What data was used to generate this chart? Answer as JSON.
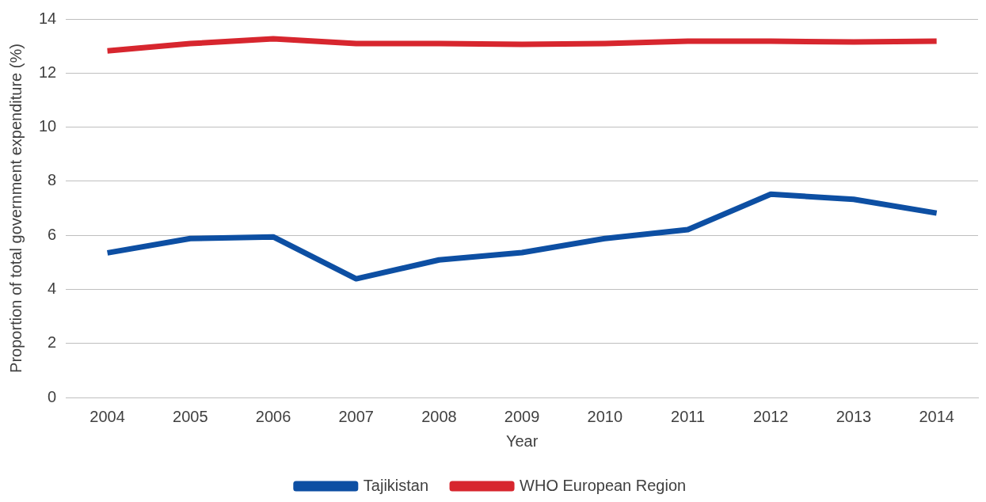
{
  "chart_data": {
    "type": "line",
    "xlabel": "Year",
    "ylabel": "Proportion of total government expenditure (%)",
    "categories": [
      "2004",
      "2005",
      "2006",
      "2007",
      "2008",
      "2009",
      "2010",
      "2011",
      "2012",
      "2013",
      "2014"
    ],
    "series": [
      {
        "name": "Tajikistan",
        "color": "#0d4fa3",
        "values": [
          5.35,
          5.88,
          5.94,
          4.39,
          5.09,
          5.36,
          5.88,
          6.21,
          7.52,
          7.33,
          6.82
        ]
      },
      {
        "name": "WHO European Region",
        "color": "#d7262e",
        "values": [
          12.82,
          13.09,
          13.27,
          13.09,
          13.09,
          13.06,
          13.09,
          13.18,
          13.18,
          13.15,
          13.18
        ]
      }
    ],
    "ylim": [
      0,
      14
    ],
    "yticks": [
      0,
      2,
      4,
      6,
      8,
      10,
      12,
      14
    ],
    "grid": "y",
    "legend": "bottom",
    "marker": "none",
    "line_style": "solid"
  }
}
